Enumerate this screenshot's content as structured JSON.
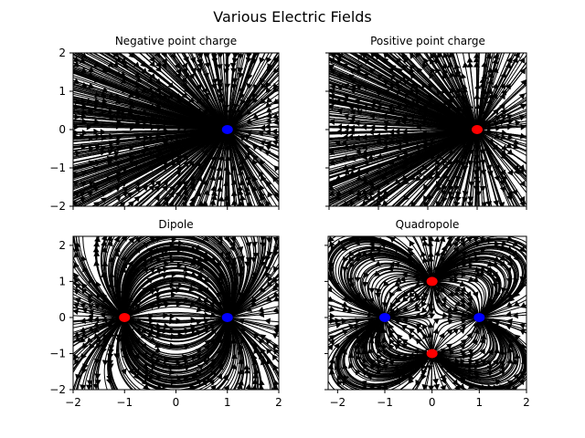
{
  "figure": {
    "title": "Various Electric Fields"
  },
  "chart_data": [
    {
      "type": "streamplot",
      "title": "Negative point charge",
      "xlim": [
        -2,
        2
      ],
      "ylim": [
        -2,
        2
      ],
      "yticks": [
        -2,
        -1,
        0,
        1,
        2
      ],
      "ytick_labels": [
        "−2",
        "−1",
        "0",
        "1",
        "2"
      ],
      "show_xtick_labels": false,
      "show_ytick_labels": true,
      "charges": [
        {
          "x": 1,
          "y": 0,
          "q": -1,
          "color": "#0000ff"
        }
      ]
    },
    {
      "type": "streamplot",
      "title": "Positive point charge",
      "xlim": [
        -2,
        2
      ],
      "ylim": [
        -2,
        2
      ],
      "yticks": [
        -2,
        -1,
        0,
        1,
        2
      ],
      "show_xtick_labels": false,
      "show_ytick_labels": false,
      "charges": [
        {
          "x": 1,
          "y": 0,
          "q": 1,
          "color": "#ff0000"
        }
      ]
    },
    {
      "type": "streamplot",
      "title": "Dipole",
      "xlim": [
        -2,
        2
      ],
      "ylim": [
        -2,
        2.25
      ],
      "xticks": [
        -2,
        -1,
        0,
        1,
        2
      ],
      "xtick_labels": [
        "−2",
        "−1",
        "0",
        "1",
        "2"
      ],
      "yticks": [
        -2,
        -1,
        0,
        1,
        2
      ],
      "ytick_labels": [
        "−2",
        "−1",
        "0",
        "1",
        "2"
      ],
      "show_xtick_labels": true,
      "show_ytick_labels": true,
      "charges": [
        {
          "x": -1,
          "y": 0,
          "q": 1,
          "color": "#ff0000"
        },
        {
          "x": 1,
          "y": 0,
          "q": -1,
          "color": "#0000ff"
        }
      ]
    },
    {
      "type": "streamplot",
      "title": "Quadropole",
      "xlim": [
        -2.2,
        2
      ],
      "ylim": [
        -2,
        2.25
      ],
      "xticks": [
        -2,
        -1,
        0,
        1,
        2
      ],
      "xtick_labels": [
        "−2",
        "−1",
        "0",
        "1",
        "2"
      ],
      "yticks": [
        -2,
        -1,
        0,
        1,
        2
      ],
      "show_xtick_labels": true,
      "show_ytick_labels": false,
      "charges": [
        {
          "x": 0,
          "y": 1,
          "q": 1,
          "color": "#ff0000"
        },
        {
          "x": 0,
          "y": -1,
          "q": 1,
          "color": "#ff0000"
        },
        {
          "x": -1,
          "y": 0,
          "q": -1,
          "color": "#0000ff"
        },
        {
          "x": 1,
          "y": 0,
          "q": -1,
          "color": "#0000ff"
        }
      ]
    }
  ]
}
